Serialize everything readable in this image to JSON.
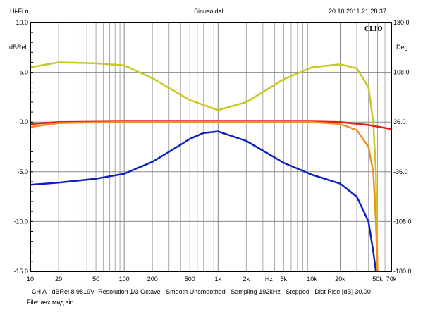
{
  "header": {
    "left": "Hi-Fi.ru",
    "center": "Sinusoidal",
    "right": "20.10.2011 21.28.37"
  },
  "logo": "CLIO",
  "footer": {
    "info": [
      "CH A",
      "dBRel 8.9819V",
      "Resolution 1/3 Octave",
      "Smooth Unsmoothed",
      "Sampling 192kHz",
      "Stepped",
      "Dist Rise [dB] 30.00"
    ],
    "file": "File: ачх мид.sin"
  },
  "chart_data": {
    "type": "line",
    "title": "Sinusoidal",
    "xlabel": "Hz",
    "ylabel": "dBRel",
    "y2label": "Deg",
    "xscale": "log",
    "xlim": [
      10,
      70000
    ],
    "ylim": [
      -15,
      10
    ],
    "y2lim": [
      -180,
      180
    ],
    "xticks": [
      {
        "v": 10,
        "l": "10"
      },
      {
        "v": 20,
        "l": "20"
      },
      {
        "v": 50,
        "l": "50"
      },
      {
        "v": 100,
        "l": "100"
      },
      {
        "v": 200,
        "l": "200"
      },
      {
        "v": 500,
        "l": "500"
      },
      {
        "v": 1000,
        "l": "1k"
      },
      {
        "v": 2000,
        "l": "2k"
      },
      {
        "v": 5000,
        "l": "5k"
      },
      {
        "v": 10000,
        "l": "10k"
      },
      {
        "v": 20000,
        "l": "20k"
      },
      {
        "v": 50000,
        "l": "50k"
      },
      {
        "v": 70000,
        "l": "70k"
      }
    ],
    "yticks": [
      "10.0",
      "5.0",
      "0.0",
      "-5.0",
      "-10.0",
      "-15.0"
    ],
    "y2ticks": [
      "180.0",
      "108.0",
      "36.0",
      "-36.0",
      "-108.0",
      "-180.0"
    ],
    "grid": true,
    "series": [
      {
        "name": "yellow",
        "color": "#c8c820",
        "x": [
          10,
          20,
          50,
          100,
          200,
          500,
          1000,
          2000,
          5000,
          10000,
          20000,
          30000,
          40000,
          45000,
          48000,
          50000
        ],
        "y": [
          5.5,
          6.0,
          5.9,
          5.7,
          4.4,
          2.2,
          1.2,
          2.0,
          4.3,
          5.5,
          5.8,
          5.4,
          3.5,
          0,
          -5,
          -15
        ]
      },
      {
        "name": "red",
        "color": "#e02010",
        "x": [
          10,
          20,
          100,
          1000,
          10000,
          20000,
          40000,
          70000
        ],
        "y": [
          -0.2,
          0,
          0.05,
          0.05,
          0.05,
          0,
          -0.3,
          -0.7
        ]
      },
      {
        "name": "orange",
        "color": "#f09020",
        "x": [
          10,
          20,
          100,
          1000,
          10000,
          20000,
          30000,
          40000,
          45000,
          48000,
          50000
        ],
        "y": [
          -0.5,
          -0.1,
          0,
          0,
          0,
          -0.2,
          -0.8,
          -2.5,
          -5,
          -10,
          -15
        ]
      },
      {
        "name": "blue",
        "color": "#1020c0",
        "x": [
          10,
          20,
          50,
          100,
          200,
          300,
          500,
          700,
          1000,
          2000,
          5000,
          10000,
          20000,
          30000,
          40000,
          45000,
          48000
        ],
        "y": [
          -6.3,
          -6.1,
          -5.7,
          -5.2,
          -4.0,
          -3.0,
          -1.7,
          -1.1,
          -0.95,
          -1.9,
          -4.1,
          -5.3,
          -6.2,
          -7.5,
          -10,
          -13,
          -15
        ]
      }
    ]
  }
}
